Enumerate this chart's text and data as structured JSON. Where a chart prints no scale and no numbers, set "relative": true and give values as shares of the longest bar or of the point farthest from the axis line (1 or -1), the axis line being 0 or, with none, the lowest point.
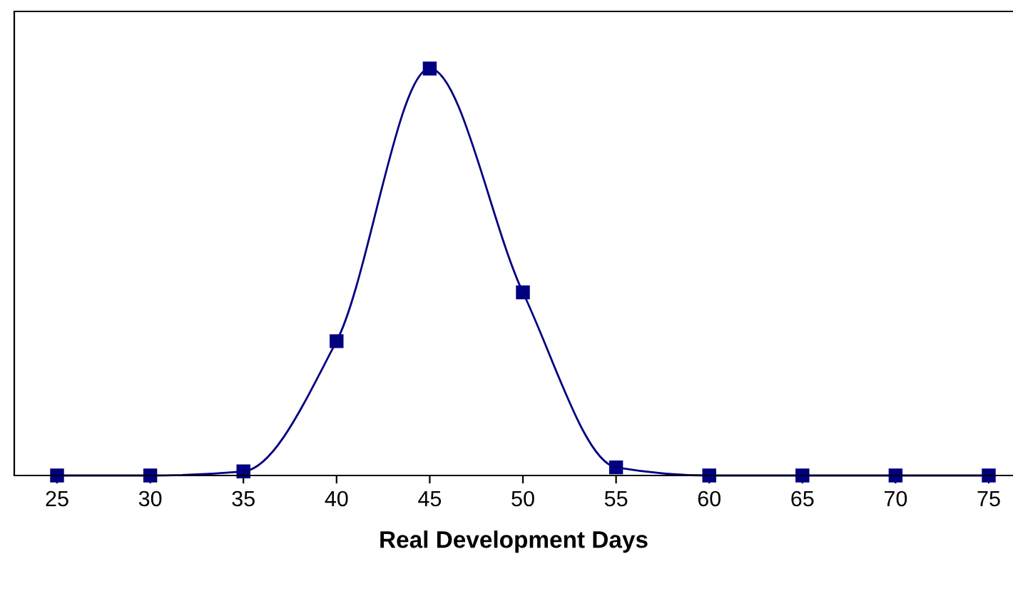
{
  "chart_data": {
    "type": "line",
    "relative": true,
    "xlabel": "Real Development Days",
    "categories": [
      "25",
      "30",
      "35",
      "40",
      "45",
      "50",
      "55",
      "60",
      "65",
      "70",
      "75"
    ],
    "series": [
      {
        "color": "#000080",
        "values": [
          0,
          0,
          0.01,
          0.33,
          1,
          0.45,
          0.02,
          0,
          0,
          0,
          0
        ]
      }
    ],
    "marker": "square",
    "line_style": "solid",
    "grid": false,
    "legend": false
  }
}
